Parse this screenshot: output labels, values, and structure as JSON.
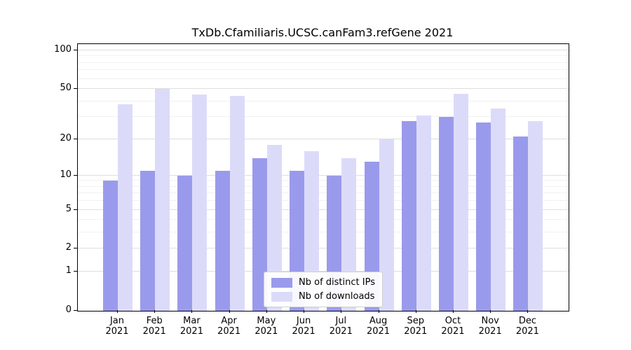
{
  "chart_data": {
    "type": "bar",
    "title": "TxDb.Cfamiliaris.UCSC.canFam3.refGene 2021",
    "categories": [
      "Jan",
      "Feb",
      "Mar",
      "Apr",
      "May",
      "Jun",
      "Jul",
      "Aug",
      "Sep",
      "Oct",
      "Nov",
      "Dec"
    ],
    "year_label": "2021",
    "series": [
      {
        "name": "Nb of distinct IPs",
        "color": "#9a9aec",
        "values": [
          9,
          11,
          10,
          11,
          14,
          11,
          10,
          13,
          28,
          30,
          27,
          21
        ]
      },
      {
        "name": "Nb of downloads",
        "color": "#dbdbf9",
        "values": [
          38,
          50,
          45,
          44,
          18,
          16,
          14,
          20,
          31,
          46,
          35,
          28
        ]
      }
    ],
    "yticks": [
      0,
      1,
      2,
      5,
      10,
      20,
      50,
      100
    ],
    "minor_yticks": [
      3,
      4,
      6,
      7,
      8,
      9,
      30,
      40,
      60,
      70,
      80,
      90
    ],
    "scale": "log1p",
    "ylim": [
      0,
      100
    ],
    "grid": "horizontal",
    "legend_position": "lower-center"
  }
}
